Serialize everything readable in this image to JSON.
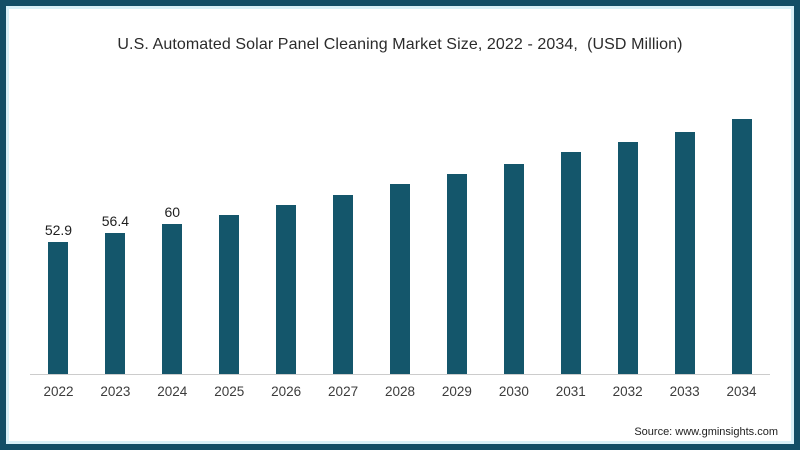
{
  "card": {
    "background": "#ffffff",
    "border_color": "#134e66",
    "inner_line_color": "#d8f0f8"
  },
  "title": "U.S. Automated Solar Panel Cleaning Market Size, 2022 - 2034,  (USD Million)",
  "source": "Source: www.gminsights.com",
  "chart_data": {
    "type": "bar",
    "title": "U.S. Automated Solar Panel Cleaning Market Size, 2022 - 2034,  (USD Million)",
    "categories": [
      "2022",
      "2023",
      "2024",
      "2025",
      "2026",
      "2027",
      "2028",
      "2029",
      "2030",
      "2031",
      "2032",
      "2033",
      "2034"
    ],
    "values": [
      52.9,
      56.4,
      60,
      63.5,
      67.5,
      71.5,
      76,
      80,
      84,
      89,
      93,
      97,
      102
    ],
    "value_labels": [
      "52.9",
      "56.4",
      "60",
      "",
      "",
      "",
      "",
      "",
      "",
      "",
      "",
      "",
      ""
    ],
    "bar_color": "#14566b",
    "axis_line_color": "#cccccc",
    "value_label_color": "#1f1f1f",
    "tick_label_color": "#3c3c3c",
    "xlabel": "",
    "ylabel": "",
    "ylim": [
      0,
      110
    ],
    "grid": false,
    "legend": false,
    "source": "Source: www.gminsights.com"
  }
}
